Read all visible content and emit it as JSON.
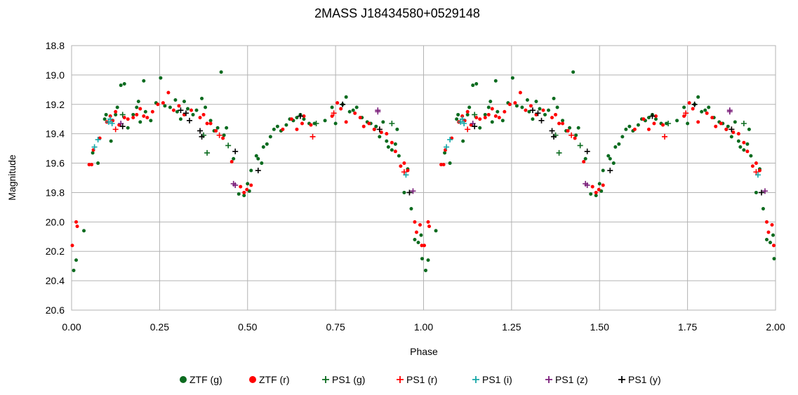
{
  "chart_data": {
    "type": "scatter",
    "title": "2MASS J18434580+0529148",
    "xlabel": "Phase",
    "ylabel": "Magnitude",
    "xlim": [
      0.0,
      2.0
    ],
    "ylim": [
      18.8,
      20.6
    ],
    "y_inverted": true,
    "x_ticks": [
      "0.00",
      "0.25",
      "0.50",
      "0.75",
      "1.00",
      "1.25",
      "1.50",
      "1.75",
      "2.00"
    ],
    "y_ticks": [
      "18.8",
      "19.0",
      "19.2",
      "19.4",
      "19.6",
      "19.8",
      "20.0",
      "20.2",
      "20.4",
      "20.6"
    ],
    "grid": true,
    "legend_position": "bottom",
    "phase_repeated": true,
    "series": [
      {
        "name": "ZTF (g)",
        "marker": "dot",
        "color": "#0b6b1f",
        "points": [
          [
            0.006,
            20.33
          ],
          [
            0.013,
            20.26
          ],
          [
            0.035,
            20.06
          ],
          [
            0.06,
            19.53
          ],
          [
            0.075,
            19.6
          ],
          [
            0.094,
            19.3
          ],
          [
            0.098,
            19.27
          ],
          [
            0.112,
            19.45
          ],
          [
            0.125,
            19.27
          ],
          [
            0.13,
            19.22
          ],
          [
            0.14,
            19.07
          ],
          [
            0.15,
            19.06
          ],
          [
            0.16,
            19.36
          ],
          [
            0.175,
            19.27
          ],
          [
            0.185,
            19.22
          ],
          [
            0.19,
            19.18
          ],
          [
            0.195,
            19.32
          ],
          [
            0.205,
            19.04
          ],
          [
            0.21,
            19.25
          ],
          [
            0.225,
            19.31
          ],
          [
            0.24,
            19.19
          ],
          [
            0.253,
            19.02
          ],
          [
            0.265,
            19.21
          ],
          [
            0.28,
            19.22
          ],
          [
            0.295,
            19.17
          ],
          [
            0.3,
            19.25
          ],
          [
            0.31,
            19.3
          ],
          [
            0.32,
            19.18
          ],
          [
            0.33,
            19.23
          ],
          [
            0.345,
            19.27
          ],
          [
            0.355,
            19.24
          ],
          [
            0.37,
            19.16
          ],
          [
            0.38,
            19.22
          ],
          [
            0.395,
            19.31
          ],
          [
            0.405,
            19.38
          ],
          [
            0.415,
            19.36
          ],
          [
            0.425,
            18.98
          ],
          [
            0.433,
            19.41
          ],
          [
            0.44,
            19.36
          ],
          [
            0.46,
            19.57
          ],
          [
            0.475,
            19.81
          ],
          [
            0.49,
            19.82
          ],
          [
            0.5,
            19.74
          ],
          [
            0.505,
            19.79
          ],
          [
            0.51,
            19.65
          ],
          [
            0.525,
            19.55
          ],
          [
            0.53,
            19.57
          ],
          [
            0.54,
            19.6
          ],
          [
            0.545,
            19.49
          ],
          [
            0.555,
            19.47
          ],
          [
            0.565,
            19.42
          ],
          [
            0.575,
            19.37
          ],
          [
            0.585,
            19.35
          ],
          [
            0.595,
            19.38
          ],
          [
            0.61,
            19.34
          ],
          [
            0.62,
            19.3
          ],
          [
            0.63,
            19.31
          ],
          [
            0.64,
            19.29
          ],
          [
            0.65,
            19.27
          ],
          [
            0.66,
            19.3
          ],
          [
            0.675,
            19.33
          ],
          [
            0.69,
            19.33
          ],
          [
            0.72,
            19.31
          ],
          [
            0.74,
            19.22
          ],
          [
            0.75,
            19.33
          ],
          [
            0.77,
            19.2
          ],
          [
            0.78,
            19.15
          ],
          [
            0.79,
            19.25
          ],
          [
            0.8,
            19.24
          ],
          [
            0.81,
            19.22
          ],
          [
            0.825,
            19.29
          ],
          [
            0.84,
            19.32
          ],
          [
            0.85,
            19.33
          ],
          [
            0.86,
            19.37
          ],
          [
            0.865,
            19.35
          ],
          [
            0.875,
            19.42
          ],
          [
            0.885,
            19.32
          ],
          [
            0.895,
            19.45
          ],
          [
            0.9,
            19.49
          ],
          [
            0.91,
            19.51
          ],
          [
            0.92,
            19.47
          ],
          [
            0.925,
            19.37
          ],
          [
            0.93,
            19.55
          ],
          [
            0.945,
            19.8
          ],
          [
            0.955,
            19.64
          ],
          [
            0.965,
            19.91
          ],
          [
            0.975,
            20.12
          ],
          [
            0.985,
            20.14
          ],
          [
            0.993,
            20.09
          ],
          [
            0.996,
            20.25
          ]
        ]
      },
      {
        "name": "ZTF (r)",
        "marker": "dot",
        "color": "#ff0000",
        "points": [
          [
            0.002,
            20.16
          ],
          [
            0.013,
            20.0
          ],
          [
            0.016,
            20.03
          ],
          [
            0.05,
            19.61
          ],
          [
            0.057,
            19.61
          ],
          [
            0.062,
            19.51
          ],
          [
            0.08,
            19.43
          ],
          [
            0.1,
            19.32
          ],
          [
            0.11,
            19.28
          ],
          [
            0.117,
            19.31
          ],
          [
            0.125,
            19.25
          ],
          [
            0.135,
            19.34
          ],
          [
            0.15,
            19.29
          ],
          [
            0.16,
            19.3
          ],
          [
            0.175,
            19.29
          ],
          [
            0.185,
            19.27
          ],
          [
            0.195,
            19.23
          ],
          [
            0.205,
            19.28
          ],
          [
            0.215,
            19.29
          ],
          [
            0.23,
            19.25
          ],
          [
            0.245,
            19.2
          ],
          [
            0.26,
            19.19
          ],
          [
            0.275,
            19.12
          ],
          [
            0.29,
            19.24
          ],
          [
            0.305,
            19.21
          ],
          [
            0.32,
            19.27
          ],
          [
            0.34,
            19.24
          ],
          [
            0.365,
            19.29
          ],
          [
            0.375,
            19.27
          ],
          [
            0.385,
            19.33
          ],
          [
            0.395,
            19.33
          ],
          [
            0.41,
            19.38
          ],
          [
            0.43,
            19.43
          ],
          [
            0.455,
            19.59
          ],
          [
            0.48,
            19.76
          ],
          [
            0.49,
            19.8
          ],
          [
            0.498,
            19.78
          ],
          [
            0.51,
            19.75
          ],
          [
            0.6,
            19.37
          ],
          [
            0.625,
            19.3
          ],
          [
            0.64,
            19.37
          ],
          [
            0.655,
            19.33
          ],
          [
            0.66,
            19.28
          ],
          [
            0.68,
            19.34
          ],
          [
            0.74,
            19.28
          ],
          [
            0.755,
            19.19
          ],
          [
            0.765,
            19.23
          ],
          [
            0.78,
            19.32
          ],
          [
            0.805,
            19.26
          ],
          [
            0.82,
            19.29
          ],
          [
            0.83,
            19.35
          ],
          [
            0.845,
            19.33
          ],
          [
            0.86,
            19.37
          ],
          [
            0.88,
            19.39
          ],
          [
            0.895,
            19.4
          ],
          [
            0.91,
            19.46
          ],
          [
            0.92,
            19.52
          ],
          [
            0.935,
            19.62
          ],
          [
            0.945,
            19.6
          ],
          [
            0.955,
            19.65
          ],
          [
            0.975,
            20.0
          ],
          [
            0.98,
            20.07
          ],
          [
            0.99,
            20.02
          ],
          [
            0.995,
            20.16
          ]
        ]
      },
      {
        "name": "PS1 (g)",
        "marker": "plus",
        "color": "#0b6b1f",
        "points": [
          [
            0.145,
            19.27
          ],
          [
            0.375,
            19.41
          ],
          [
            0.385,
            19.53
          ],
          [
            0.445,
            19.48
          ],
          [
            0.695,
            19.33
          ],
          [
            0.91,
            19.33
          ]
        ]
      },
      {
        "name": "PS1 (r)",
        "marker": "plus",
        "color": "#ff0000",
        "points": [
          [
            0.125,
            19.37
          ],
          [
            0.42,
            19.41
          ],
          [
            0.685,
            19.42
          ],
          [
            0.745,
            19.26
          ],
          [
            0.875,
            19.37
          ],
          [
            0.945,
            19.66
          ]
        ]
      },
      {
        "name": "PS1 (i)",
        "marker": "plus",
        "color": "#17a8a8",
        "points": [
          [
            0.065,
            19.49
          ],
          [
            0.075,
            19.44
          ],
          [
            0.105,
            19.32
          ],
          [
            0.11,
            19.3
          ],
          [
            0.115,
            19.33
          ],
          [
            0.95,
            19.68
          ]
        ]
      },
      {
        "name": "PS1 (z)",
        "marker": "plus",
        "color": "#7b1f7b",
        "points": [
          [
            0.14,
            19.33
          ],
          [
            0.46,
            19.74
          ],
          [
            0.465,
            19.75
          ],
          [
            0.87,
            19.25
          ],
          [
            0.87,
            19.24
          ],
          [
            0.97,
            19.79
          ]
        ]
      },
      {
        "name": "PS1 (y)",
        "marker": "plus",
        "color": "#000000",
        "points": [
          [
            0.145,
            19.35
          ],
          [
            0.31,
            19.24
          ],
          [
            0.325,
            19.26
          ],
          [
            0.335,
            19.31
          ],
          [
            0.365,
            19.38
          ],
          [
            0.37,
            19.42
          ],
          [
            0.465,
            19.52
          ],
          [
            0.53,
            19.65
          ],
          [
            0.65,
            19.28
          ],
          [
            0.77,
            19.2
          ],
          [
            0.875,
            19.37
          ],
          [
            0.96,
            19.8
          ]
        ]
      }
    ]
  }
}
